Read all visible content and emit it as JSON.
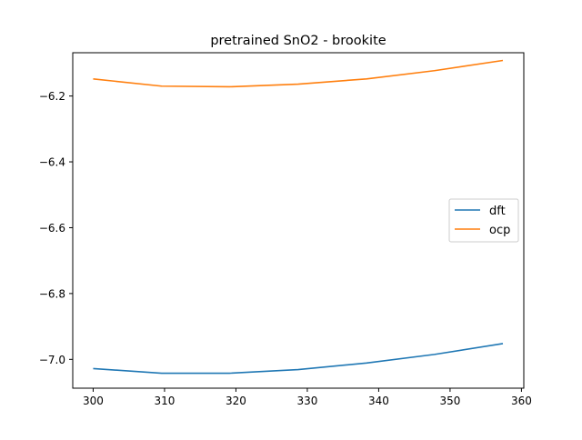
{
  "chart_data": {
    "type": "line",
    "title": "pretrained SnO2 - brookite",
    "xlabel": "",
    "ylabel": "",
    "xlim": [
      297.14,
      360.33
    ],
    "ylim": [
      -7.0875,
      -6.0685
    ],
    "xticks": [
      300,
      310,
      320,
      330,
      340,
      350,
      360
    ],
    "yticks": [
      -7.0,
      -6.8,
      -6.6,
      -6.4,
      -6.2
    ],
    "ytick_labels": [
      "−7.0",
      "−6.8",
      "−6.6",
      "−6.4",
      "−6.2"
    ],
    "grid": false,
    "legend": {
      "position": "center-right"
    },
    "series": [
      {
        "name": "dft",
        "color": "#1f77b4",
        "x": [
          300,
          309.6,
          319.1,
          328.7,
          338.3,
          347.8,
          357.4
        ],
        "y": [
          -7.028,
          -7.042,
          -7.042,
          -7.031,
          -7.011,
          -6.985,
          -6.952
        ]
      },
      {
        "name": "ocp",
        "color": "#ff7f0e",
        "x": [
          300,
          309.6,
          319.1,
          328.7,
          338.3,
          347.8,
          357.4
        ],
        "y": [
          -6.148,
          -6.17,
          -6.172,
          -6.164,
          -6.148,
          -6.123,
          -6.092
        ]
      }
    ]
  }
}
